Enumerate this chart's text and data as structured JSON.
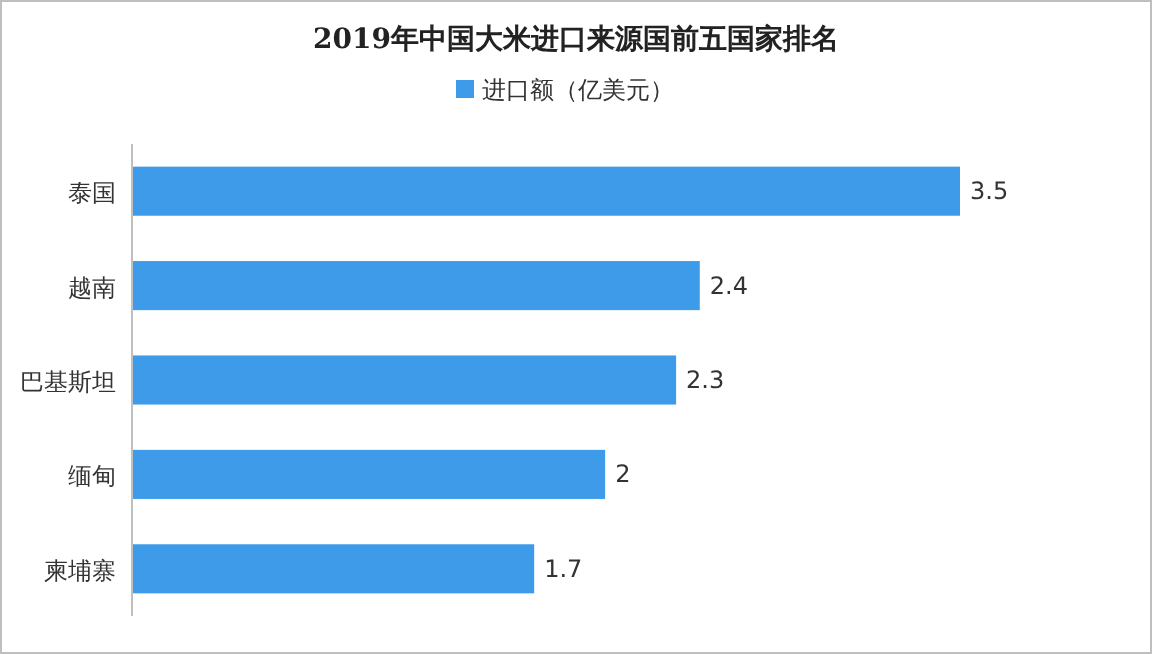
{
  "chart_data": {
    "type": "bar",
    "orientation": "horizontal",
    "title": "2019年中国大米进口来源国前五国家排名",
    "categories": [
      "泰国",
      "越南",
      "巴基斯坦",
      "缅甸",
      "柬埔寨"
    ],
    "series": [
      {
        "name": "进口额（亿美元）",
        "color": "#3d9be9",
        "values": [
          3.5,
          2.4,
          2.3,
          2,
          1.7
        ]
      }
    ],
    "data_labels": true,
    "legend": "top",
    "grid": false
  }
}
